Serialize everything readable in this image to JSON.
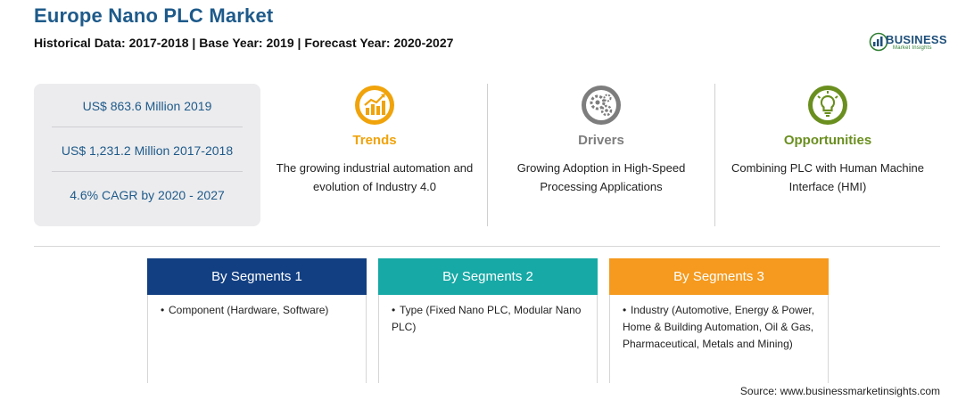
{
  "header": {
    "title": "Europe Nano PLC Market",
    "subtitle": "Historical Data: 2017-2018 | Base Year: 2019 | Forecast Year: 2020-2027"
  },
  "logo": {
    "word": "BUSINESS",
    "tagline": "Market Insights"
  },
  "stats": [
    "US$ 863.6 Million 2019",
    "US$ 1,231.2 Million 2017-2018",
    "4.6% CAGR by 2020 - 2027"
  ],
  "features": [
    {
      "title": "Trends",
      "text": "The growing industrial automation and evolution of Industry 4.0",
      "icon": "trend-chart-icon",
      "color": "#f0a30a"
    },
    {
      "title": "Drivers",
      "text": "Growing Adoption in High-Speed Processing Applications",
      "icon": "gears-icon",
      "color": "#7d7d7d"
    },
    {
      "title": "Opportunities",
      "text": "Combining PLC with Human Machine Interface (HMI)",
      "icon": "lightbulb-icon",
      "color": "#6a8f1f"
    }
  ],
  "segments": [
    {
      "title": "By Segments 1",
      "color": "#123f82",
      "text": "Component (Hardware, Software)"
    },
    {
      "title": "By Segments 2",
      "color": "#17a9a6",
      "text": "Type (Fixed Nano PLC, Modular Nano PLC)"
    },
    {
      "title": "By Segments 3",
      "color": "#f59a1e",
      "text": "Industry (Automotive, Energy & Power, Home & Building Automation, Oil & Gas, Pharmaceutical, Metals and Mining)"
    }
  ],
  "source": "Source: www.businessmarketinsights.com",
  "colors": {
    "title": "#1e5a8a",
    "stats_text": "#1e5a8a",
    "stats_bg": "#ececee"
  }
}
